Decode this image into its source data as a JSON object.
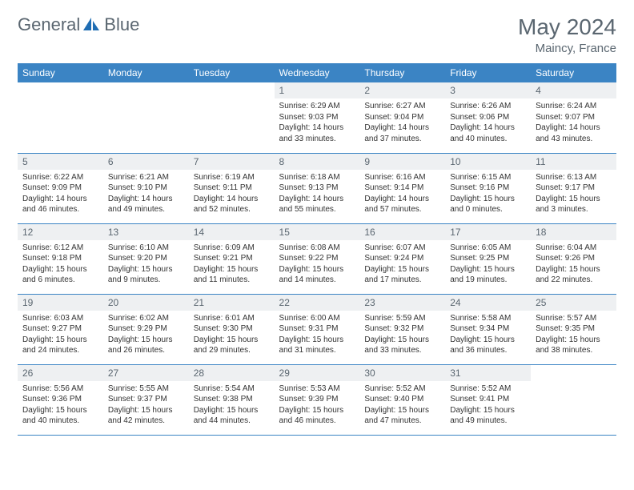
{
  "brand": {
    "left": "General",
    "right": "Blue"
  },
  "title": "May 2024",
  "location": "Maincy, France",
  "colors": {
    "header_bg": "#3b84c4",
    "header_text": "#ffffff",
    "daynum_bg": "#eef0f2",
    "text_muted": "#5a6670",
    "rule": "#3b84c4",
    "brand_blue": "#1f6db3"
  },
  "weekdays": [
    "Sunday",
    "Monday",
    "Tuesday",
    "Wednesday",
    "Thursday",
    "Friday",
    "Saturday"
  ],
  "weeks": [
    [
      null,
      null,
      null,
      {
        "n": "1",
        "sr": "6:29 AM",
        "ss": "9:03 PM",
        "dl": "14 hours and 33 minutes."
      },
      {
        "n": "2",
        "sr": "6:27 AM",
        "ss": "9:04 PM",
        "dl": "14 hours and 37 minutes."
      },
      {
        "n": "3",
        "sr": "6:26 AM",
        "ss": "9:06 PM",
        "dl": "14 hours and 40 minutes."
      },
      {
        "n": "4",
        "sr": "6:24 AM",
        "ss": "9:07 PM",
        "dl": "14 hours and 43 minutes."
      }
    ],
    [
      {
        "n": "5",
        "sr": "6:22 AM",
        "ss": "9:09 PM",
        "dl": "14 hours and 46 minutes."
      },
      {
        "n": "6",
        "sr": "6:21 AM",
        "ss": "9:10 PM",
        "dl": "14 hours and 49 minutes."
      },
      {
        "n": "7",
        "sr": "6:19 AM",
        "ss": "9:11 PM",
        "dl": "14 hours and 52 minutes."
      },
      {
        "n": "8",
        "sr": "6:18 AM",
        "ss": "9:13 PM",
        "dl": "14 hours and 55 minutes."
      },
      {
        "n": "9",
        "sr": "6:16 AM",
        "ss": "9:14 PM",
        "dl": "14 hours and 57 minutes."
      },
      {
        "n": "10",
        "sr": "6:15 AM",
        "ss": "9:16 PM",
        "dl": "15 hours and 0 minutes."
      },
      {
        "n": "11",
        "sr": "6:13 AM",
        "ss": "9:17 PM",
        "dl": "15 hours and 3 minutes."
      }
    ],
    [
      {
        "n": "12",
        "sr": "6:12 AM",
        "ss": "9:18 PM",
        "dl": "15 hours and 6 minutes."
      },
      {
        "n": "13",
        "sr": "6:10 AM",
        "ss": "9:20 PM",
        "dl": "15 hours and 9 minutes."
      },
      {
        "n": "14",
        "sr": "6:09 AM",
        "ss": "9:21 PM",
        "dl": "15 hours and 11 minutes."
      },
      {
        "n": "15",
        "sr": "6:08 AM",
        "ss": "9:22 PM",
        "dl": "15 hours and 14 minutes."
      },
      {
        "n": "16",
        "sr": "6:07 AM",
        "ss": "9:24 PM",
        "dl": "15 hours and 17 minutes."
      },
      {
        "n": "17",
        "sr": "6:05 AM",
        "ss": "9:25 PM",
        "dl": "15 hours and 19 minutes."
      },
      {
        "n": "18",
        "sr": "6:04 AM",
        "ss": "9:26 PM",
        "dl": "15 hours and 22 minutes."
      }
    ],
    [
      {
        "n": "19",
        "sr": "6:03 AM",
        "ss": "9:27 PM",
        "dl": "15 hours and 24 minutes."
      },
      {
        "n": "20",
        "sr": "6:02 AM",
        "ss": "9:29 PM",
        "dl": "15 hours and 26 minutes."
      },
      {
        "n": "21",
        "sr": "6:01 AM",
        "ss": "9:30 PM",
        "dl": "15 hours and 29 minutes."
      },
      {
        "n": "22",
        "sr": "6:00 AM",
        "ss": "9:31 PM",
        "dl": "15 hours and 31 minutes."
      },
      {
        "n": "23",
        "sr": "5:59 AM",
        "ss": "9:32 PM",
        "dl": "15 hours and 33 minutes."
      },
      {
        "n": "24",
        "sr": "5:58 AM",
        "ss": "9:34 PM",
        "dl": "15 hours and 36 minutes."
      },
      {
        "n": "25",
        "sr": "5:57 AM",
        "ss": "9:35 PM",
        "dl": "15 hours and 38 minutes."
      }
    ],
    [
      {
        "n": "26",
        "sr": "5:56 AM",
        "ss": "9:36 PM",
        "dl": "15 hours and 40 minutes."
      },
      {
        "n": "27",
        "sr": "5:55 AM",
        "ss": "9:37 PM",
        "dl": "15 hours and 42 minutes."
      },
      {
        "n": "28",
        "sr": "5:54 AM",
        "ss": "9:38 PM",
        "dl": "15 hours and 44 minutes."
      },
      {
        "n": "29",
        "sr": "5:53 AM",
        "ss": "9:39 PM",
        "dl": "15 hours and 46 minutes."
      },
      {
        "n": "30",
        "sr": "5:52 AM",
        "ss": "9:40 PM",
        "dl": "15 hours and 47 minutes."
      },
      {
        "n": "31",
        "sr": "5:52 AM",
        "ss": "9:41 PM",
        "dl": "15 hours and 49 minutes."
      },
      null
    ]
  ],
  "labels": {
    "sunrise": "Sunrise:",
    "sunset": "Sunset:",
    "daylight": "Daylight:"
  }
}
